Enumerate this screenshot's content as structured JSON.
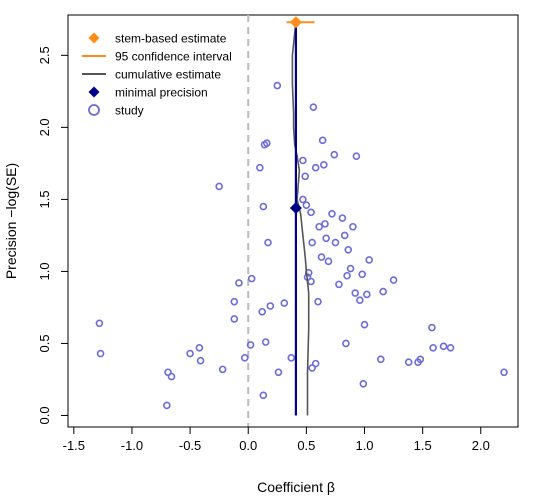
{
  "chart_data": {
    "type": "scatter",
    "title": "",
    "xlabel": "Coefficient β",
    "ylabel": "Precision −log(SE)",
    "xlim": [
      -1.55,
      2.32
    ],
    "ylim": [
      -0.08,
      2.78
    ],
    "x_ticks": [
      "-1.5",
      "-1.0",
      "-0.5",
      "0.0",
      "0.5",
      "1.0",
      "1.5",
      "2.0"
    ],
    "x_tick_values": [
      -1.5,
      -1.0,
      -0.5,
      0.0,
      0.5,
      1.0,
      1.5,
      2.0
    ],
    "y_ticks": [
      "0.0",
      "0.5",
      "1.0",
      "1.5",
      "2.0",
      "2.5"
    ],
    "y_tick_values": [
      0.0,
      0.5,
      1.0,
      1.5,
      2.0,
      2.5
    ],
    "legend_position": "top-left",
    "legend": [
      {
        "label": "stem-based estimate",
        "symbol": "diamond",
        "color": "#ff8c1a"
      },
      {
        "label": "95 confidence interval",
        "symbol": "line",
        "color": "#ff8c1a"
      },
      {
        "label": "cumulative estimate",
        "symbol": "line",
        "color": "#555555"
      },
      {
        "label": "minimal precision",
        "symbol": "diamond",
        "color": "#00008b"
      },
      {
        "label": "study",
        "symbol": "circle",
        "color": "#6b6bdd"
      }
    ],
    "colors": {
      "stem": "#ff8c1a",
      "ci": "#ff8c1a",
      "cumulative": "#555555",
      "minimal": "#00008b",
      "vertical": "#00008b",
      "study": "#6b6bdd",
      "zero_line": "#bbbbbb"
    },
    "stem_estimate": {
      "x": 0.41,
      "y": 2.73
    },
    "confidence_interval": {
      "low": 0.33,
      "high": 0.57,
      "y": 2.73
    },
    "minimal_precision": {
      "x": 0.41,
      "y": 1.44
    },
    "vertical_line": {
      "x": 0.41,
      "y_from": 0.0,
      "y_to": 2.73
    },
    "zero_line_x": 0.0,
    "cumulative_estimate": [
      {
        "x": 0.51,
        "y": 0.0
      },
      {
        "x": 0.51,
        "y": 0.3
      },
      {
        "x": 0.52,
        "y": 0.6
      },
      {
        "x": 0.52,
        "y": 0.85
      },
      {
        "x": 0.5,
        "y": 1.0
      },
      {
        "x": 0.49,
        "y": 1.1
      },
      {
        "x": 0.47,
        "y": 1.25
      },
      {
        "x": 0.45,
        "y": 1.4
      },
      {
        "x": 0.42,
        "y": 1.5
      },
      {
        "x": 0.43,
        "y": 1.6
      },
      {
        "x": 0.44,
        "y": 1.7
      },
      {
        "x": 0.42,
        "y": 1.8
      },
      {
        "x": 0.4,
        "y": 1.88
      },
      {
        "x": 0.39,
        "y": 2.0
      },
      {
        "x": 0.39,
        "y": 2.1
      },
      {
        "x": 0.38,
        "y": 2.3
      },
      {
        "x": 0.38,
        "y": 2.5
      },
      {
        "x": 0.41,
        "y": 2.73
      }
    ],
    "studies": [
      {
        "x": -1.28,
        "y": 0.64
      },
      {
        "x": -1.27,
        "y": 0.43
      },
      {
        "x": -0.7,
        "y": 0.07
      },
      {
        "x": -0.69,
        "y": 0.3
      },
      {
        "x": -0.66,
        "y": 0.27
      },
      {
        "x": -0.5,
        "y": 0.43
      },
      {
        "x": -0.42,
        "y": 0.47
      },
      {
        "x": -0.41,
        "y": 0.38
      },
      {
        "x": -0.22,
        "y": 0.32
      },
      {
        "x": -0.12,
        "y": 0.67
      },
      {
        "x": -0.12,
        "y": 0.79
      },
      {
        "x": -0.08,
        "y": 0.92
      },
      {
        "x": -0.03,
        "y": 0.4
      },
      {
        "x": 0.02,
        "y": 0.49
      },
      {
        "x": 0.03,
        "y": 0.95
      },
      {
        "x": -0.25,
        "y": 1.59
      },
      {
        "x": 0.1,
        "y": 1.72
      },
      {
        "x": 0.14,
        "y": 1.88
      },
      {
        "x": 0.16,
        "y": 1.89
      },
      {
        "x": 0.13,
        "y": 1.45
      },
      {
        "x": 0.17,
        "y": 1.2
      },
      {
        "x": 0.15,
        "y": 0.51
      },
      {
        "x": 0.12,
        "y": 0.72
      },
      {
        "x": 0.19,
        "y": 0.76
      },
      {
        "x": 0.13,
        "y": 0.14
      },
      {
        "x": 0.25,
        "y": 2.29
      },
      {
        "x": 0.26,
        "y": 0.3
      },
      {
        "x": 0.31,
        "y": 0.78
      },
      {
        "x": 0.37,
        "y": 0.4
      },
      {
        "x": 0.47,
        "y": 1.5
      },
      {
        "x": 0.47,
        "y": 1.77
      },
      {
        "x": 0.49,
        "y": 1.66
      },
      {
        "x": 0.5,
        "y": 1.46
      },
      {
        "x": 0.51,
        "y": 0.96
      },
      {
        "x": 0.52,
        "y": 0.99
      },
      {
        "x": 0.54,
        "y": 0.93
      },
      {
        "x": 0.54,
        "y": 1.41
      },
      {
        "x": 0.55,
        "y": 1.2
      },
      {
        "x": 0.55,
        "y": 0.33
      },
      {
        "x": 0.56,
        "y": 2.14
      },
      {
        "x": 0.58,
        "y": 1.72
      },
      {
        "x": 0.58,
        "y": 0.36
      },
      {
        "x": 0.6,
        "y": 0.79
      },
      {
        "x": 0.61,
        "y": 1.31
      },
      {
        "x": 0.63,
        "y": 1.1
      },
      {
        "x": 0.64,
        "y": 1.91
      },
      {
        "x": 0.65,
        "y": 1.74
      },
      {
        "x": 0.66,
        "y": 1.33
      },
      {
        "x": 0.67,
        "y": 1.23
      },
      {
        "x": 0.69,
        "y": 1.07
      },
      {
        "x": 0.72,
        "y": 1.4
      },
      {
        "x": 0.74,
        "y": 1.81
      },
      {
        "x": 0.75,
        "y": 1.2
      },
      {
        "x": 0.78,
        "y": 0.91
      },
      {
        "x": 0.81,
        "y": 1.37
      },
      {
        "x": 0.83,
        "y": 1.25
      },
      {
        "x": 0.84,
        "y": 0.5
      },
      {
        "x": 0.85,
        "y": 0.97
      },
      {
        "x": 0.86,
        "y": 1.15
      },
      {
        "x": 0.88,
        "y": 1.02
      },
      {
        "x": 0.9,
        "y": 1.31
      },
      {
        "x": 0.92,
        "y": 0.85
      },
      {
        "x": 0.93,
        "y": 1.8
      },
      {
        "x": 0.96,
        "y": 0.8
      },
      {
        "x": 0.98,
        "y": 0.98
      },
      {
        "x": 0.99,
        "y": 0.22
      },
      {
        "x": 1.0,
        "y": 0.63
      },
      {
        "x": 1.02,
        "y": 0.84
      },
      {
        "x": 1.04,
        "y": 1.08
      },
      {
        "x": 1.14,
        "y": 0.39
      },
      {
        "x": 1.16,
        "y": 0.86
      },
      {
        "x": 1.25,
        "y": 0.94
      },
      {
        "x": 1.38,
        "y": 0.37
      },
      {
        "x": 1.46,
        "y": 0.37
      },
      {
        "x": 1.48,
        "y": 0.39
      },
      {
        "x": 1.58,
        "y": 0.61
      },
      {
        "x": 1.59,
        "y": 0.47
      },
      {
        "x": 1.68,
        "y": 0.48
      },
      {
        "x": 1.74,
        "y": 0.47
      },
      {
        "x": 2.2,
        "y": 0.3
      }
    ]
  }
}
